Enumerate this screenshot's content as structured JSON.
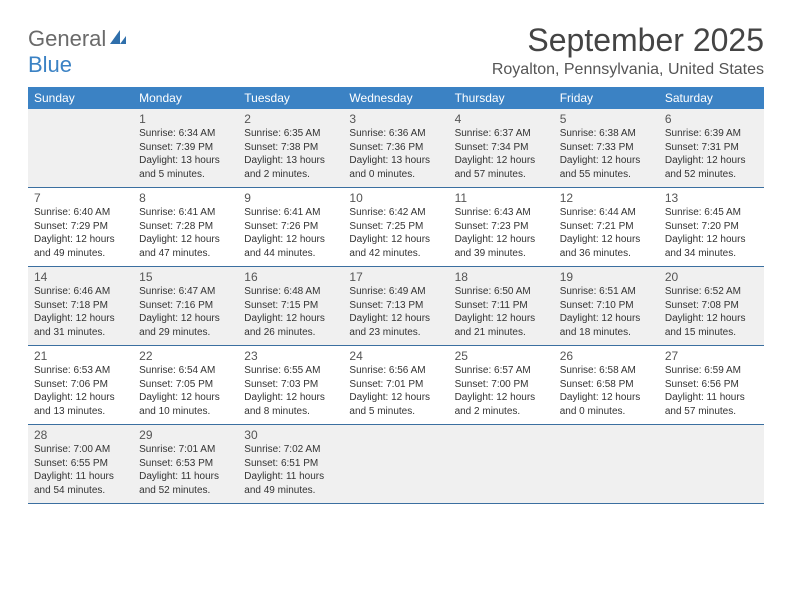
{
  "logo": {
    "text1": "General",
    "text2": "Blue"
  },
  "title": "September 2025",
  "location": "Royalton, Pennsylvania, United States",
  "colors": {
    "header_bg": "#3b82c4",
    "header_text": "#ffffff",
    "row_border": "#3b6fa0",
    "shaded_bg": "#f0f0f0",
    "cell_bg": "#ffffff",
    "text": "#333333"
  },
  "weekdays": [
    "Sunday",
    "Monday",
    "Tuesday",
    "Wednesday",
    "Thursday",
    "Friday",
    "Saturday"
  ],
  "weeks": [
    {
      "shaded": true,
      "days": [
        null,
        {
          "n": "1",
          "sr": "Sunrise: 6:34 AM",
          "ss": "Sunset: 7:39 PM",
          "d1": "Daylight: 13 hours",
          "d2": "and 5 minutes."
        },
        {
          "n": "2",
          "sr": "Sunrise: 6:35 AM",
          "ss": "Sunset: 7:38 PM",
          "d1": "Daylight: 13 hours",
          "d2": "and 2 minutes."
        },
        {
          "n": "3",
          "sr": "Sunrise: 6:36 AM",
          "ss": "Sunset: 7:36 PM",
          "d1": "Daylight: 13 hours",
          "d2": "and 0 minutes."
        },
        {
          "n": "4",
          "sr": "Sunrise: 6:37 AM",
          "ss": "Sunset: 7:34 PM",
          "d1": "Daylight: 12 hours",
          "d2": "and 57 minutes."
        },
        {
          "n": "5",
          "sr": "Sunrise: 6:38 AM",
          "ss": "Sunset: 7:33 PM",
          "d1": "Daylight: 12 hours",
          "d2": "and 55 minutes."
        },
        {
          "n": "6",
          "sr": "Sunrise: 6:39 AM",
          "ss": "Sunset: 7:31 PM",
          "d1": "Daylight: 12 hours",
          "d2": "and 52 minutes."
        }
      ]
    },
    {
      "shaded": false,
      "days": [
        {
          "n": "7",
          "sr": "Sunrise: 6:40 AM",
          "ss": "Sunset: 7:29 PM",
          "d1": "Daylight: 12 hours",
          "d2": "and 49 minutes."
        },
        {
          "n": "8",
          "sr": "Sunrise: 6:41 AM",
          "ss": "Sunset: 7:28 PM",
          "d1": "Daylight: 12 hours",
          "d2": "and 47 minutes."
        },
        {
          "n": "9",
          "sr": "Sunrise: 6:41 AM",
          "ss": "Sunset: 7:26 PM",
          "d1": "Daylight: 12 hours",
          "d2": "and 44 minutes."
        },
        {
          "n": "10",
          "sr": "Sunrise: 6:42 AM",
          "ss": "Sunset: 7:25 PM",
          "d1": "Daylight: 12 hours",
          "d2": "and 42 minutes."
        },
        {
          "n": "11",
          "sr": "Sunrise: 6:43 AM",
          "ss": "Sunset: 7:23 PM",
          "d1": "Daylight: 12 hours",
          "d2": "and 39 minutes."
        },
        {
          "n": "12",
          "sr": "Sunrise: 6:44 AM",
          "ss": "Sunset: 7:21 PM",
          "d1": "Daylight: 12 hours",
          "d2": "and 36 minutes."
        },
        {
          "n": "13",
          "sr": "Sunrise: 6:45 AM",
          "ss": "Sunset: 7:20 PM",
          "d1": "Daylight: 12 hours",
          "d2": "and 34 minutes."
        }
      ]
    },
    {
      "shaded": true,
      "days": [
        {
          "n": "14",
          "sr": "Sunrise: 6:46 AM",
          "ss": "Sunset: 7:18 PM",
          "d1": "Daylight: 12 hours",
          "d2": "and 31 minutes."
        },
        {
          "n": "15",
          "sr": "Sunrise: 6:47 AM",
          "ss": "Sunset: 7:16 PM",
          "d1": "Daylight: 12 hours",
          "d2": "and 29 minutes."
        },
        {
          "n": "16",
          "sr": "Sunrise: 6:48 AM",
          "ss": "Sunset: 7:15 PM",
          "d1": "Daylight: 12 hours",
          "d2": "and 26 minutes."
        },
        {
          "n": "17",
          "sr": "Sunrise: 6:49 AM",
          "ss": "Sunset: 7:13 PM",
          "d1": "Daylight: 12 hours",
          "d2": "and 23 minutes."
        },
        {
          "n": "18",
          "sr": "Sunrise: 6:50 AM",
          "ss": "Sunset: 7:11 PM",
          "d1": "Daylight: 12 hours",
          "d2": "and 21 minutes."
        },
        {
          "n": "19",
          "sr": "Sunrise: 6:51 AM",
          "ss": "Sunset: 7:10 PM",
          "d1": "Daylight: 12 hours",
          "d2": "and 18 minutes."
        },
        {
          "n": "20",
          "sr": "Sunrise: 6:52 AM",
          "ss": "Sunset: 7:08 PM",
          "d1": "Daylight: 12 hours",
          "d2": "and 15 minutes."
        }
      ]
    },
    {
      "shaded": false,
      "days": [
        {
          "n": "21",
          "sr": "Sunrise: 6:53 AM",
          "ss": "Sunset: 7:06 PM",
          "d1": "Daylight: 12 hours",
          "d2": "and 13 minutes."
        },
        {
          "n": "22",
          "sr": "Sunrise: 6:54 AM",
          "ss": "Sunset: 7:05 PM",
          "d1": "Daylight: 12 hours",
          "d2": "and 10 minutes."
        },
        {
          "n": "23",
          "sr": "Sunrise: 6:55 AM",
          "ss": "Sunset: 7:03 PM",
          "d1": "Daylight: 12 hours",
          "d2": "and 8 minutes."
        },
        {
          "n": "24",
          "sr": "Sunrise: 6:56 AM",
          "ss": "Sunset: 7:01 PM",
          "d1": "Daylight: 12 hours",
          "d2": "and 5 minutes."
        },
        {
          "n": "25",
          "sr": "Sunrise: 6:57 AM",
          "ss": "Sunset: 7:00 PM",
          "d1": "Daylight: 12 hours",
          "d2": "and 2 minutes."
        },
        {
          "n": "26",
          "sr": "Sunrise: 6:58 AM",
          "ss": "Sunset: 6:58 PM",
          "d1": "Daylight: 12 hours",
          "d2": "and 0 minutes."
        },
        {
          "n": "27",
          "sr": "Sunrise: 6:59 AM",
          "ss": "Sunset: 6:56 PM",
          "d1": "Daylight: 11 hours",
          "d2": "and 57 minutes."
        }
      ]
    },
    {
      "shaded": true,
      "days": [
        {
          "n": "28",
          "sr": "Sunrise: 7:00 AM",
          "ss": "Sunset: 6:55 PM",
          "d1": "Daylight: 11 hours",
          "d2": "and 54 minutes."
        },
        {
          "n": "29",
          "sr": "Sunrise: 7:01 AM",
          "ss": "Sunset: 6:53 PM",
          "d1": "Daylight: 11 hours",
          "d2": "and 52 minutes."
        },
        {
          "n": "30",
          "sr": "Sunrise: 7:02 AM",
          "ss": "Sunset: 6:51 PM",
          "d1": "Daylight: 11 hours",
          "d2": "and 49 minutes."
        },
        null,
        null,
        null,
        null
      ]
    }
  ]
}
